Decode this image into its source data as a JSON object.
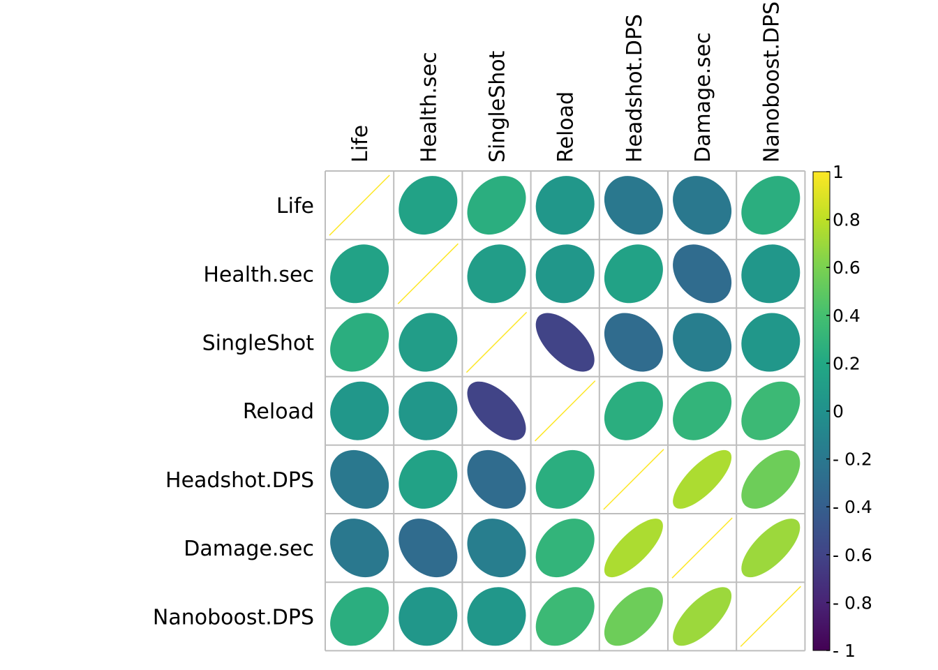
{
  "chart_data": {
    "type": "heatmap",
    "glyph": "ellipse",
    "variables": [
      "Life",
      "Health.sec",
      "SingleShot",
      "Reload",
      "Headshot.DPS",
      "Damage.sec",
      "Nanoboost.DPS"
    ],
    "matrix": [
      [
        1.0,
        0.15,
        0.25,
        0.05,
        -0.2,
        -0.2,
        0.25
      ],
      [
        0.15,
        1.0,
        0.1,
        0.05,
        0.15,
        -0.3,
        0.05
      ],
      [
        0.25,
        0.1,
        1.0,
        -0.6,
        -0.3,
        -0.15,
        0.05
      ],
      [
        0.05,
        0.05,
        -0.6,
        1.0,
        0.25,
        0.3,
        0.35
      ],
      [
        -0.2,
        0.15,
        -0.3,
        0.25,
        1.0,
        0.75,
        0.55
      ],
      [
        -0.2,
        -0.3,
        -0.15,
        0.3,
        0.75,
        1.0,
        0.7
      ],
      [
        0.25,
        0.05,
        0.05,
        0.35,
        0.55,
        0.7,
        1.0
      ]
    ],
    "colorbar": {
      "range": [
        -1,
        1
      ],
      "tick_labels": [
        "1",
        "0.8",
        "0.6",
        "0.4",
        "0.2",
        "0",
        "- 0.2",
        "- 0.4",
        "- 0.6",
        "- 0.8",
        "- 1"
      ],
      "tick_values": [
        1,
        0.8,
        0.6,
        0.4,
        0.2,
        0,
        -0.2,
        -0.4,
        -0.6,
        -0.8,
        -1
      ]
    },
    "colormap": [
      "#440154",
      "#482475",
      "#414487",
      "#355f8d",
      "#2a788e",
      "#21918c",
      "#22a884",
      "#44bf70",
      "#7ad151",
      "#bddf26",
      "#fde725"
    ],
    "grid_color": "#bdbdbd",
    "diagonal_line_color": "#fde725"
  }
}
